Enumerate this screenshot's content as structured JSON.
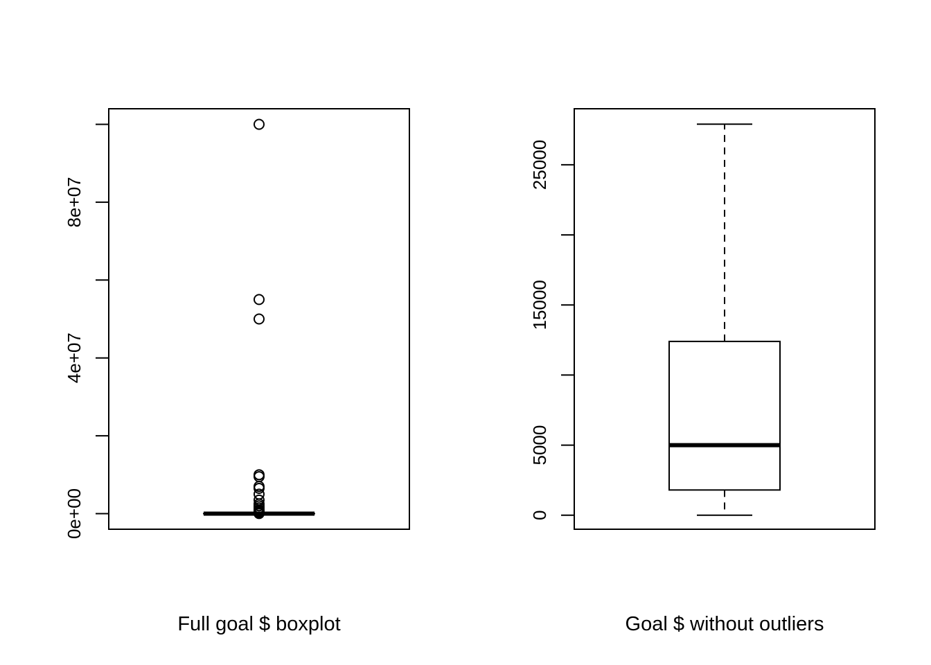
{
  "chart_data": [
    {
      "type": "box",
      "xlabel": "Full goal $ boxplot",
      "ylabel": "",
      "ylim": [
        -4000000,
        104000000
      ],
      "yticks": [
        0,
        20000000,
        40000000,
        60000000,
        80000000,
        100000000
      ],
      "ytick_labels": [
        "0e+00",
        "",
        "4e+07",
        "",
        "8e+07",
        ""
      ],
      "box": {
        "min": 0,
        "q1": 1000,
        "median": 5000,
        "q3": 12000,
        "max": 28000
      },
      "outliers": [
        100000000,
        55000000,
        50000000,
        10000000,
        9500000,
        7000000,
        6500000,
        5000000,
        3500000,
        2500000,
        2000000,
        1500000,
        1000000,
        700000,
        500000,
        300000,
        150000,
        80000,
        40000
      ]
    },
    {
      "type": "box",
      "xlabel": "Goal $ without outliers",
      "ylabel": "",
      "ylim": [
        -1000,
        29000
      ],
      "yticks": [
        0,
        5000,
        10000,
        15000,
        20000,
        25000
      ],
      "ytick_labels": [
        "0",
        "5000",
        "",
        "15000",
        "",
        "25000"
      ],
      "box": {
        "min": 0,
        "q1": 1800,
        "median": 5000,
        "q3": 12400,
        "max": 27900
      },
      "outliers": []
    }
  ]
}
